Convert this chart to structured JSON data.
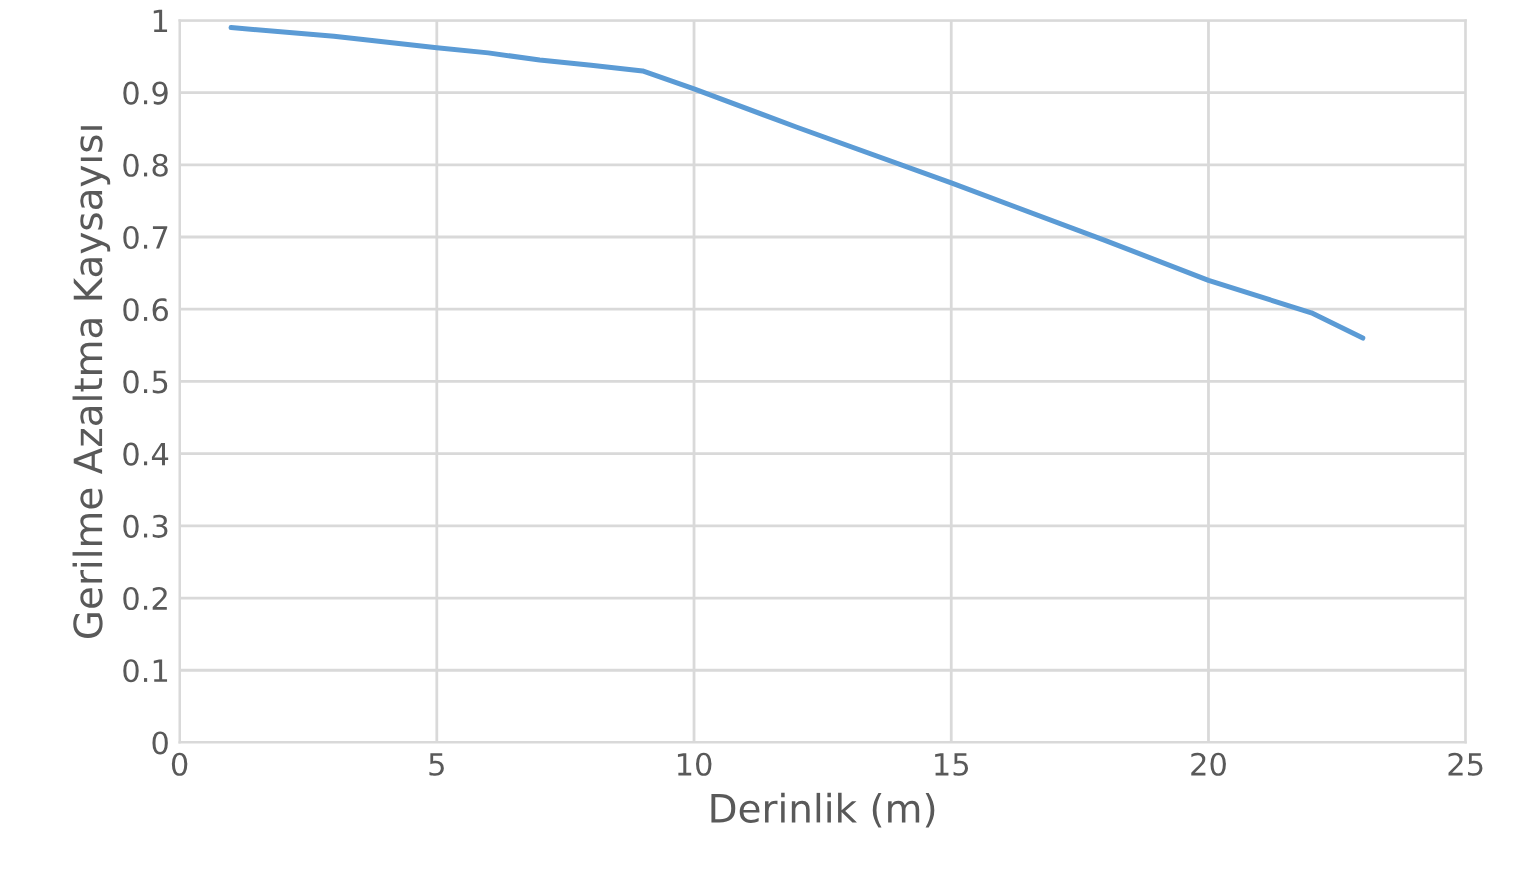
{
  "chart_data": {
    "type": "line",
    "xlabel": "Derinlik (m)",
    "ylabel": "Gerilme Azaltma Kaysayısı",
    "xlim": [
      0,
      25
    ],
    "xticks": [
      0,
      5,
      10,
      15,
      20,
      25
    ],
    "ylim": [
      0,
      1
    ],
    "yticks": [
      0,
      {
        "value": 0.1,
        "label": "0.1"
      },
      {
        "value": 0.2,
        "label": "0.2"
      },
      {
        "value": 0.3,
        "label": "0.3"
      },
      {
        "value": 0.4,
        "label": "0.4"
      },
      {
        "value": 0.5,
        "label": "0.5"
      },
      {
        "value": 0.6,
        "label": "0.6"
      },
      {
        "value": 0.7,
        "label": "0.7"
      },
      {
        "value": 0.8,
        "label": "0.8"
      },
      {
        "value": 0.9,
        "label": "0.9"
      },
      1
    ],
    "grid": true,
    "marker": "none",
    "line_style": "solid",
    "series": [
      {
        "color": "#5b9bd5",
        "x": [
          1,
          3,
          5,
          6,
          7,
          8,
          9,
          10,
          12,
          15,
          18,
          20,
          22,
          23
        ],
        "values": [
          0.99,
          0.978,
          0.962,
          0.955,
          0.945,
          0.938,
          0.93,
          0.905,
          0.852,
          0.775,
          0.695,
          0.64,
          0.595,
          0.56
        ]
      }
    ]
  }
}
